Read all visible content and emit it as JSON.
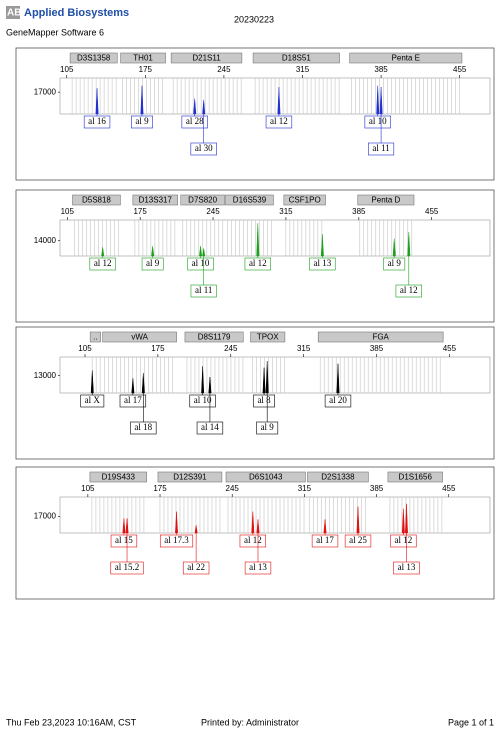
{
  "header": {
    "logo": "AB",
    "brand": "Applied Biosystems",
    "software": "GeneMapper Software 6",
    "run": "20230223"
  },
  "chart_data": [
    {
      "type": "electropherogram",
      "color": "#1f2fd0",
      "xlim": [
        99,
        482
      ],
      "xticks": [
        105,
        175,
        245,
        315,
        385,
        455
      ],
      "ylim": [
        0,
        28000
      ],
      "yticks": [
        17000
      ],
      "loci": [
        {
          "name": "D3S1358",
          "range": [
            108,
            150
          ]
        },
        {
          "name": "TH01",
          "range": [
            153,
            193
          ]
        },
        {
          "name": "D21S11",
          "range": [
            198,
            261
          ]
        },
        {
          "name": "D18S51",
          "range": [
            271,
            348
          ]
        },
        {
          "name": "Penta E",
          "range": [
            357,
            457
          ]
        }
      ],
      "x": [
        132,
        172,
        219,
        227,
        294,
        382,
        385
      ],
      "values": [
        20000,
        22000,
        12000,
        11000,
        21000,
        22000,
        21000
      ],
      "labels": [
        "al 16",
        "al 9",
        "al 28",
        "al 30",
        "al 12",
        "al 10",
        "al 11"
      ]
    },
    {
      "type": "electropherogram",
      "color": "#1aa01a",
      "xlim": [
        98,
        511
      ],
      "xticks": [
        105,
        175,
        245,
        315,
        385,
        455
      ],
      "ylim": [
        0,
        33000
      ],
      "yticks": [
        14000
      ],
      "loci": [
        {
          "name": "D5S818",
          "range": [
            110,
            156
          ]
        },
        {
          "name": "D13S317",
          "range": [
            168,
            211
          ]
        },
        {
          "name": "D7S820",
          "range": [
            214,
            256
          ]
        },
        {
          "name": "D16S539",
          "range": [
            257,
            303
          ]
        },
        {
          "name": "CSF1PO",
          "range": [
            313,
            353
          ]
        },
        {
          "name": "Penta D",
          "range": [
            384,
            438
          ]
        }
      ],
      "x": [
        139,
        187,
        233,
        236,
        288,
        350,
        419,
        433
      ],
      "values": [
        8000,
        9000,
        9000,
        7000,
        30000,
        20000,
        16000,
        22000
      ],
      "labels": [
        "al 12",
        "al 9",
        "al 10",
        "al 11",
        "al 12",
        "al 13",
        "al 9",
        "al 12"
      ]
    },
    {
      "type": "electropherogram",
      "color": "#000000",
      "xlim": [
        81,
        494
      ],
      "xticks": [
        105,
        175,
        245,
        315,
        385,
        455
      ],
      "ylim": [
        0,
        27000
      ],
      "yticks": [
        13000
      ],
      "loci": [
        {
          "name": "..",
          "range": [
            110,
            120
          ]
        },
        {
          "name": "vWA",
          "range": [
            122,
            193
          ]
        },
        {
          "name": "D8S1179",
          "range": [
            201,
            257
          ]
        },
        {
          "name": "TPOX",
          "range": [
            264,
            297
          ]
        },
        {
          "name": "FGA",
          "range": [
            329,
            449
          ]
        }
      ],
      "x": [
        112,
        151,
        161,
        218,
        225,
        277,
        280,
        348
      ],
      "values": [
        17000,
        11000,
        15000,
        20000,
        12000,
        19000,
        24000,
        22000
      ],
      "labels": [
        "al X",
        "al 17",
        "al 18",
        "al 10",
        "al 14",
        "al 8",
        "al 9",
        "al 20"
      ]
    },
    {
      "type": "electropherogram",
      "color": "#e01010",
      "xlim": [
        78,
        495
      ],
      "xticks": [
        105,
        175,
        245,
        315,
        385,
        455
      ],
      "ylim": [
        0,
        37000
      ],
      "yticks": [
        17000
      ],
      "loci": [
        {
          "name": "D19S433",
          "range": [
            107,
            162
          ]
        },
        {
          "name": "D12S391",
          "range": [
            173,
            235
          ]
        },
        {
          "name": "D6S1043",
          "range": [
            239,
            316
          ]
        },
        {
          "name": "D2S1338",
          "range": [
            318,
            377
          ]
        },
        {
          "name": "D1S1656",
          "range": [
            396,
            449
          ]
        }
      ],
      "x": [
        140,
        143,
        191,
        210,
        265,
        270,
        335,
        367,
        411,
        414
      ],
      "values": [
        15000,
        15000,
        22000,
        8000,
        22000,
        14000,
        14000,
        27000,
        25000,
        30000
      ],
      "labels": [
        "al 15",
        "al 15.2",
        "al 17.3",
        "al 22",
        "al 12",
        "al 13",
        "al 17",
        "al 25",
        "al 12",
        "al 13"
      ]
    }
  ],
  "footer": {
    "printed_on": "Thu Feb 23,2023 10:16AM, CST",
    "printed_by": "Printed by: Administrator",
    "page": "Page 1 of 1"
  }
}
